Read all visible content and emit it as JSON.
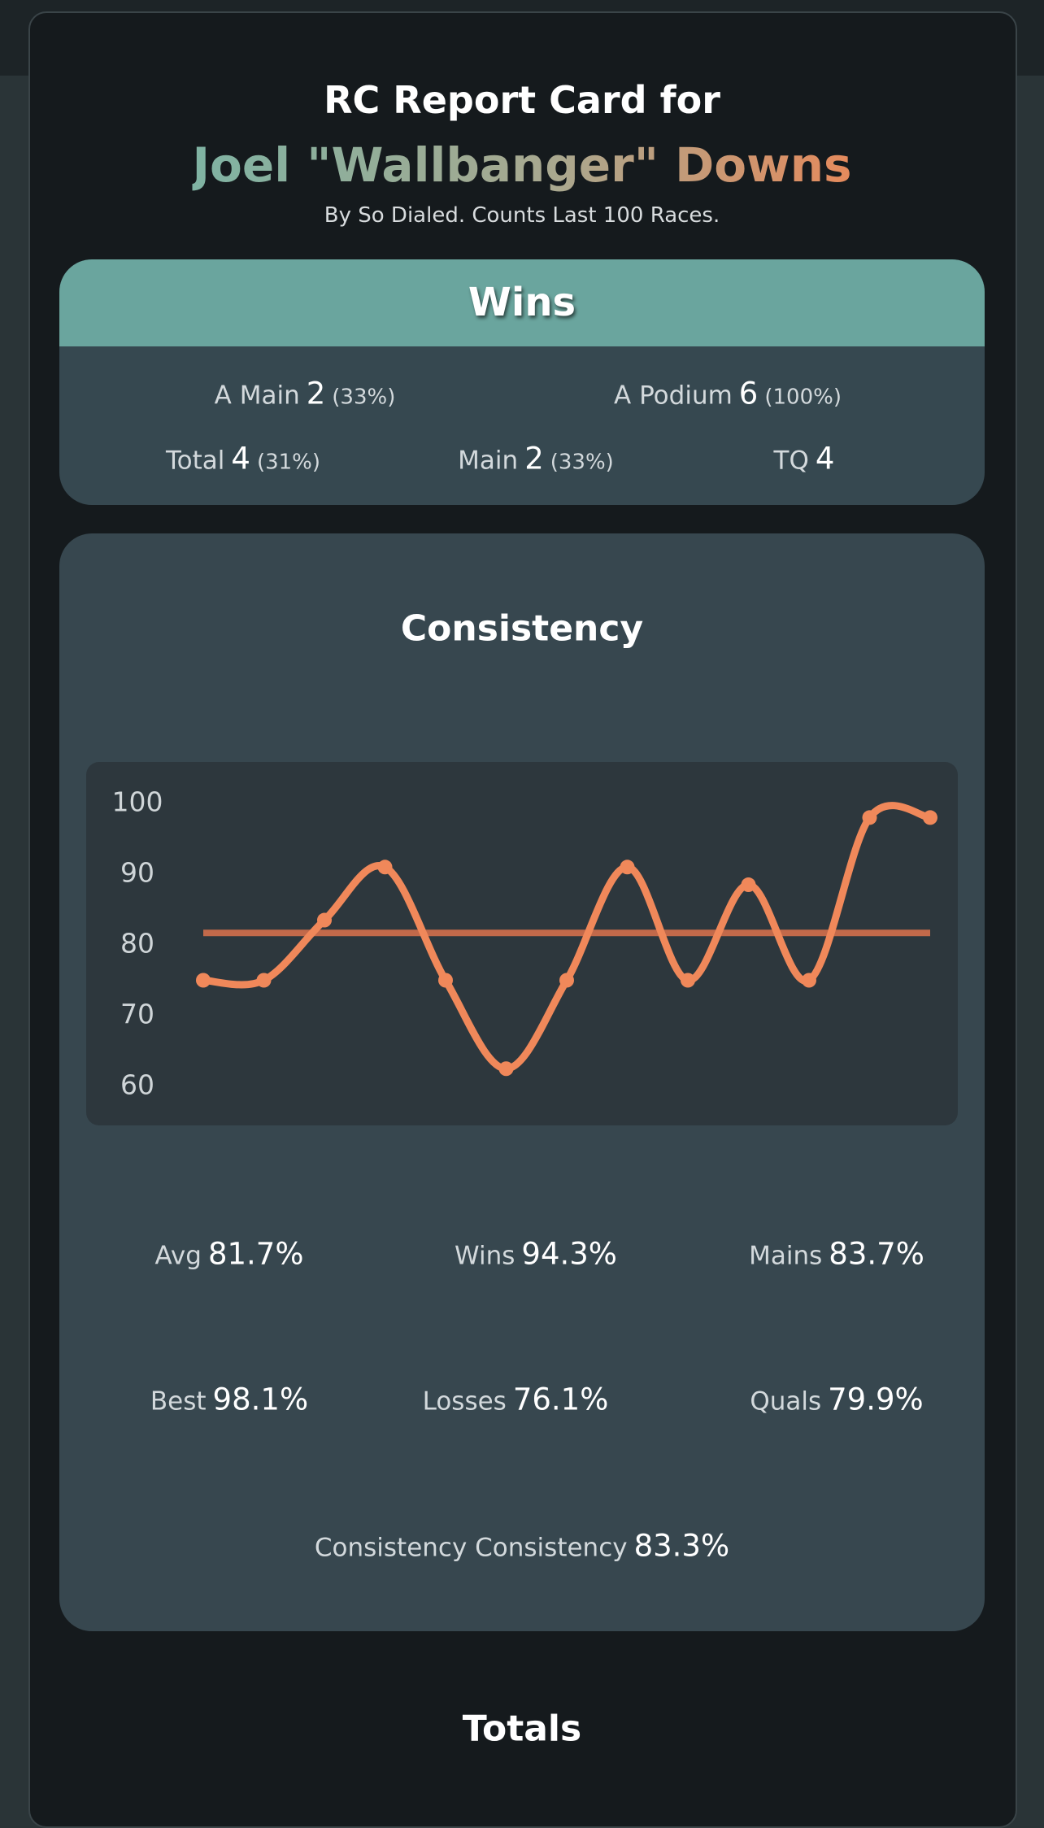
{
  "header": {
    "title": "RC Report Card for",
    "name": "Joel \"Wallbanger\" Downs",
    "subtitle": "By So Dialed. Counts Last 100 Races."
  },
  "wins": {
    "title": "Wins",
    "items": [
      {
        "label": "A Main",
        "value": "2",
        "pct": "(33%)"
      },
      {
        "label": "A Podium",
        "value": "6",
        "pct": "(100%)"
      },
      {
        "label": "Total",
        "value": "4",
        "pct": "(31%)"
      },
      {
        "label": "Main",
        "value": "2",
        "pct": "(33%)"
      },
      {
        "label": "TQ",
        "value": "4"
      }
    ]
  },
  "consistency": {
    "title": "Consistency",
    "stats": [
      {
        "label": "Avg",
        "value": "81.7%"
      },
      {
        "label": "Wins",
        "value": "94.3%"
      },
      {
        "label": "Mains",
        "value": "83.7%"
      },
      {
        "label": "Best",
        "value": "98.1%"
      },
      {
        "label": "Losses",
        "value": "76.1%"
      },
      {
        "label": "Quals",
        "value": "79.9%"
      },
      {
        "label": "Consistency Consistency",
        "value": "83.3%"
      }
    ]
  },
  "chart_data": {
    "type": "line",
    "categories": [
      null,
      null,
      null,
      null,
      null,
      null,
      null,
      null,
      null,
      null,
      null,
      null,
      null
    ],
    "values": [
      75,
      75,
      83.5,
      91,
      75,
      62.5,
      75,
      91,
      75,
      88.5,
      75,
      98,
      98
    ],
    "color": "#f0885a",
    "average": 81.7,
    "average_color": "#c2694a",
    "ylim": [
      60,
      100
    ],
    "yticks": [
      60,
      70,
      80,
      90,
      100
    ],
    "grid": false
  },
  "totals": {
    "title": "Totals"
  }
}
